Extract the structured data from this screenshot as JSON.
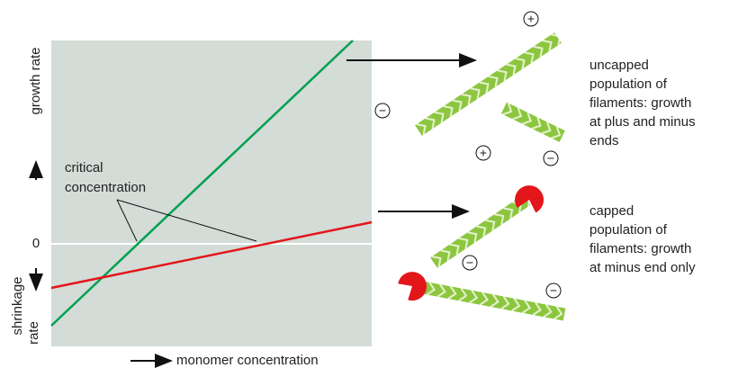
{
  "axes": {
    "y_label_top": "growth rate",
    "y_label_bottom": [
      "shrinkage",
      "rate"
    ],
    "zero": "0",
    "x_label": "monomer concentration"
  },
  "annotation": [
    "critical",
    "concentration"
  ],
  "signs": {
    "plus": "+",
    "minus": "−"
  },
  "uncapped": [
    "uncapped",
    "population of",
    "filaments: growth",
    "at plus and minus",
    "ends"
  ],
  "capped": [
    "capped",
    "population of",
    "filaments: growth",
    "at minus end only"
  ]
}
